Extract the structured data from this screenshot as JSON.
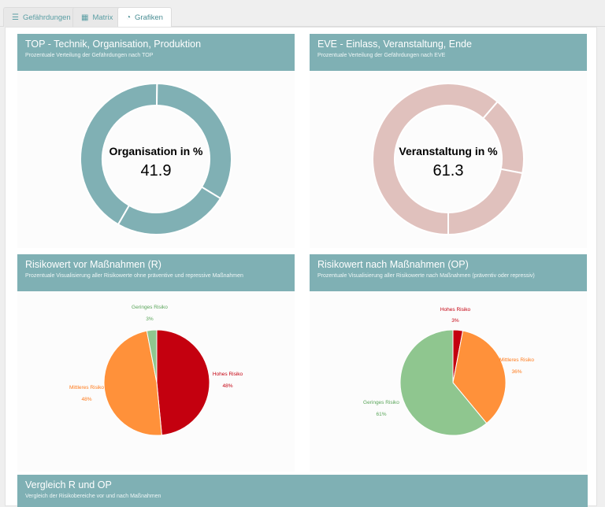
{
  "tabs": [
    {
      "label": "Gefährdungen",
      "icon": "list-icon"
    },
    {
      "label": "Matrix",
      "icon": "table-icon"
    },
    {
      "label": "Grafiken",
      "icon": "pie-chart-icon",
      "active": true
    }
  ],
  "panels": {
    "top": {
      "title": "TOP - Technik, Organisation, Produktion",
      "subtitle": "Prozentuale Verteilung der Gefährdungen nach TOP"
    },
    "eve": {
      "title": "EVE - Einlass, Veranstaltung, Ende",
      "subtitle": "Prozentuale Verteilung der Gefährdungen nach EVE"
    },
    "risk_before": {
      "title": "Risikowert vor Maßnahmen (R)",
      "subtitle": "Prozentuale Visualisierung aller Risikowerte ohne präventive und repressive Maßnahmen"
    },
    "risk_after": {
      "title": "Risikowert nach Maßnahmen (OP)",
      "subtitle": "Prozentuale Visualisierung aller Risikowerte nach Maßnahmen (präventiv oder repressiv)"
    },
    "compare": {
      "title": "Vergleich R und OP",
      "subtitle": "Vergleich der Risikobereiche vor und nach Maßnahmen"
    }
  },
  "colors": {
    "header": "#7fb0b4",
    "donut_top": "#80b0b4",
    "donut_eve": "#e0c1bd",
    "hohes": "#c4000f",
    "mittleres": "#ff913a",
    "geringes": "#8fc68f"
  },
  "chart_data": [
    {
      "type": "pie",
      "style": "donut",
      "center_label": "Organisation in %",
      "center_value": "41.9",
      "slices": [
        {
          "name": "Organisation",
          "value": 41.9
        },
        {
          "name": "",
          "value": 33.5
        },
        {
          "name": "",
          "value": 24.6
        }
      ]
    },
    {
      "type": "pie",
      "style": "donut",
      "center_label": "Veranstaltung in %",
      "center_value": "61.3",
      "slices": [
        {
          "name": "Veranstaltung",
          "value": 61.3
        },
        {
          "name": "",
          "value": 16.7
        },
        {
          "name": "",
          "value": 22.0
        }
      ]
    },
    {
      "type": "pie",
      "slices": [
        {
          "name": "Hohes Risiko",
          "value": 48,
          "label": "48%",
          "color": "#c4000f"
        },
        {
          "name": "Mittleres Risiko",
          "value": 48,
          "label": "48%",
          "color": "#ff913a"
        },
        {
          "name": "Geringes Risiko",
          "value": 3,
          "label": "3%",
          "color": "#8fc68f"
        }
      ]
    },
    {
      "type": "pie",
      "slices": [
        {
          "name": "Hohes Risiko",
          "value": 3,
          "label": "3%",
          "color": "#c4000f"
        },
        {
          "name": "Mittleres Risiko",
          "value": 36,
          "label": "36%",
          "color": "#ff913a"
        },
        {
          "name": "Geringes Risiko",
          "value": 61,
          "label": "61%",
          "color": "#8fc68f"
        }
      ]
    }
  ]
}
